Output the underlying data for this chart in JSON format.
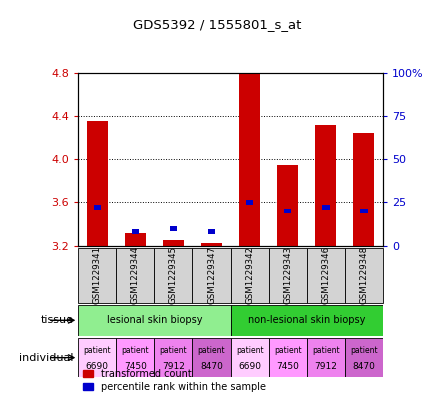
{
  "title": "GDS5392 / 1555801_s_at",
  "samples": [
    "GSM1229341",
    "GSM1229344",
    "GSM1229345",
    "GSM1229347",
    "GSM1229342",
    "GSM1229343",
    "GSM1229346",
    "GSM1229348"
  ],
  "transformed_count": [
    4.35,
    3.32,
    3.25,
    3.22,
    4.8,
    3.95,
    4.32,
    4.24
  ],
  "percentile_rank": [
    22,
    8,
    10,
    8,
    25,
    20,
    22,
    20
  ],
  "bar_bottom": 3.2,
  "ylim_left": [
    3.2,
    4.8
  ],
  "ylim_right": [
    0,
    100
  ],
  "yticks_left": [
    3.2,
    3.6,
    4.0,
    4.4,
    4.8
  ],
  "yticks_right": [
    0,
    25,
    50,
    75,
    100
  ],
  "ytick_labels_right": [
    "0",
    "25",
    "50",
    "75",
    "100%"
  ],
  "tissue_groups": [
    {
      "label": "lesional skin biopsy",
      "start": 0,
      "end": 4,
      "color": "#90ee90"
    },
    {
      "label": "non-lesional skin biopsy",
      "start": 4,
      "end": 8,
      "color": "#32cd32"
    }
  ],
  "individuals": [
    {
      "label": "patient\n6690",
      "color": "#ffccff"
    },
    {
      "label": "patient\n7450",
      "color": "#ff99ff"
    },
    {
      "label": "patient\n7912",
      "color": "#ee82ee"
    },
    {
      "label": "patient\n8470",
      "color": "#cc66cc"
    },
    {
      "label": "patient\n6690",
      "color": "#ffccff"
    },
    {
      "label": "patient\n7450",
      "color": "#ff99ff"
    },
    {
      "label": "patient\n7912",
      "color": "#ee82ee"
    },
    {
      "label": "patient\n8470",
      "color": "#cc66cc"
    }
  ],
  "bar_color_red": "#cc0000",
  "bar_color_blue": "#0000cc",
  "bar_width": 0.55,
  "blue_bar_width": 0.2,
  "left_label_color": "#cc0000",
  "right_label_color": "#0000cc",
  "grid_color": "black",
  "grid_linestyle": "dotted",
  "xticklabel_bg": "#d3d3d3"
}
